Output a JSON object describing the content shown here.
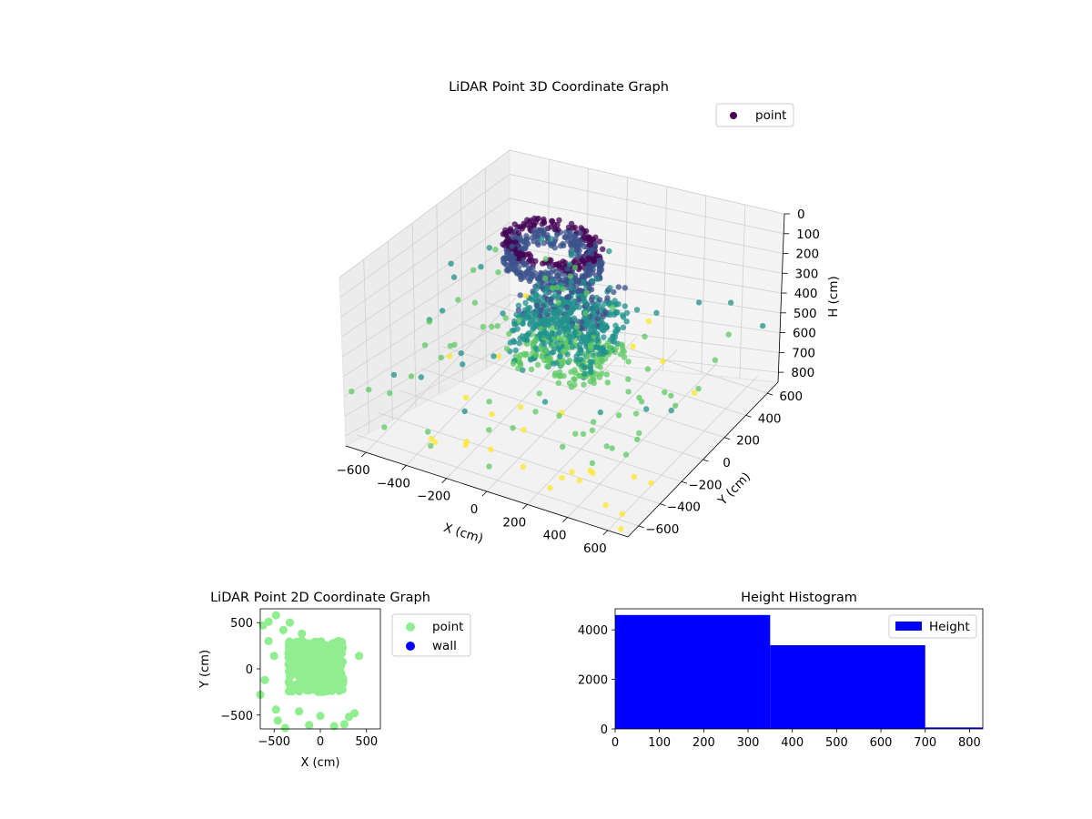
{
  "chart_data": [
    {
      "type": "scatter",
      "title": "LiDAR Point 3D Coordinate Graph",
      "projection": "3d",
      "colormap": "viridis",
      "xlabel": "X (cm)",
      "ylabel": "Y (cm)",
      "zlabel": "H (cm)",
      "xlim": [
        -700,
        700
      ],
      "ylim": [
        -700,
        700
      ],
      "zlim": [
        850,
        0
      ],
      "z_axis_inverted": true,
      "x_ticks": [
        "−600",
        "−400",
        "−200",
        "0",
        "200",
        "400",
        "600"
      ],
      "y_ticks": [
        "−600",
        "−400",
        "−200",
        "0",
        "200",
        "400",
        "600"
      ],
      "z_ticks": [
        "0",
        "100",
        "200",
        "300",
        "400",
        "500",
        "600",
        "700",
        "800"
      ],
      "grid": true,
      "legend": {
        "placement": "upper right",
        "entries": [
          {
            "label": "point",
            "color": "#440154"
          }
        ]
      },
      "series": [
        {
          "name": "point",
          "clusters": [
            {
              "description": "upper ring structure",
              "x_range": [
                -350,
                150
              ],
              "y_range": [
                -150,
                350
              ],
              "h_range": [
                100,
                300
              ]
            },
            {
              "description": "lower dense mass",
              "x_range": [
                -250,
                250
              ],
              "y_range": [
                -200,
                250
              ],
              "h_range": [
                300,
                650
              ]
            },
            {
              "description": "sparse far points",
              "x_range": [
                -700,
                700
              ],
              "y_range": [
                -700,
                700
              ],
              "h_range": [
                500,
                850
              ]
            }
          ]
        }
      ]
    },
    {
      "type": "scatter",
      "title": "LiDAR Point 2D Coordinate Graph",
      "xlabel": "X (cm)",
      "ylabel": "Y (cm)",
      "xlim": [
        -650,
        650
      ],
      "ylim": [
        -650,
        650
      ],
      "x_ticks": [
        -500,
        0,
        500
      ],
      "y_ticks": [
        -500,
        0,
        500
      ],
      "legend": {
        "placement": "outside right",
        "entries": [
          {
            "label": "point",
            "color": "#90ee90"
          },
          {
            "label": "wall",
            "color": "#0000ff"
          }
        ]
      },
      "series": [
        {
          "name": "point",
          "color": "#90ee90",
          "cluster": {
            "x_range": [
              -350,
              250
            ],
            "y_range": [
              -250,
              300
            ]
          },
          "outliers": [
            [
              -620,
              470
            ],
            [
              -560,
              510
            ],
            [
              -480,
              580
            ],
            [
              -400,
              420
            ],
            [
              -330,
              500
            ],
            [
              -560,
              300
            ],
            [
              -500,
              140
            ],
            [
              -600,
              -120
            ],
            [
              -650,
              -280
            ],
            [
              -480,
              -440
            ],
            [
              -460,
              -560
            ],
            [
              -380,
              -640
            ],
            [
              -230,
              -460
            ],
            [
              -120,
              -610
            ],
            [
              0,
              -510
            ],
            [
              150,
              -620
            ],
            [
              260,
              -600
            ],
            [
              310,
              -520
            ],
            [
              370,
              -480
            ],
            [
              420,
              140
            ],
            [
              200,
              300
            ],
            [
              -200,
              380
            ]
          ]
        },
        {
          "name": "wall",
          "color": "#0000ff",
          "points": []
        }
      ]
    },
    {
      "type": "bar",
      "title": "Height Histogram",
      "bins": [
        [
          0,
          350
        ],
        [
          350,
          700
        ],
        [
          700,
          1050
        ]
      ],
      "values": [
        4600,
        3380,
        60
      ],
      "xlim": [
        0,
        830
      ],
      "ylim": [
        0,
        4850
      ],
      "x_ticks": [
        0,
        100,
        200,
        300,
        400,
        500,
        600,
        700,
        800
      ],
      "y_ticks": [
        0,
        2000,
        4000
      ],
      "color": "#0000ff",
      "legend": {
        "placement": "upper right",
        "entries": [
          {
            "label": "Height",
            "color": "#0000ff"
          }
        ]
      },
      "series": [
        {
          "name": "Height",
          "values": [
            4600,
            3380,
            60
          ]
        }
      ]
    }
  ]
}
